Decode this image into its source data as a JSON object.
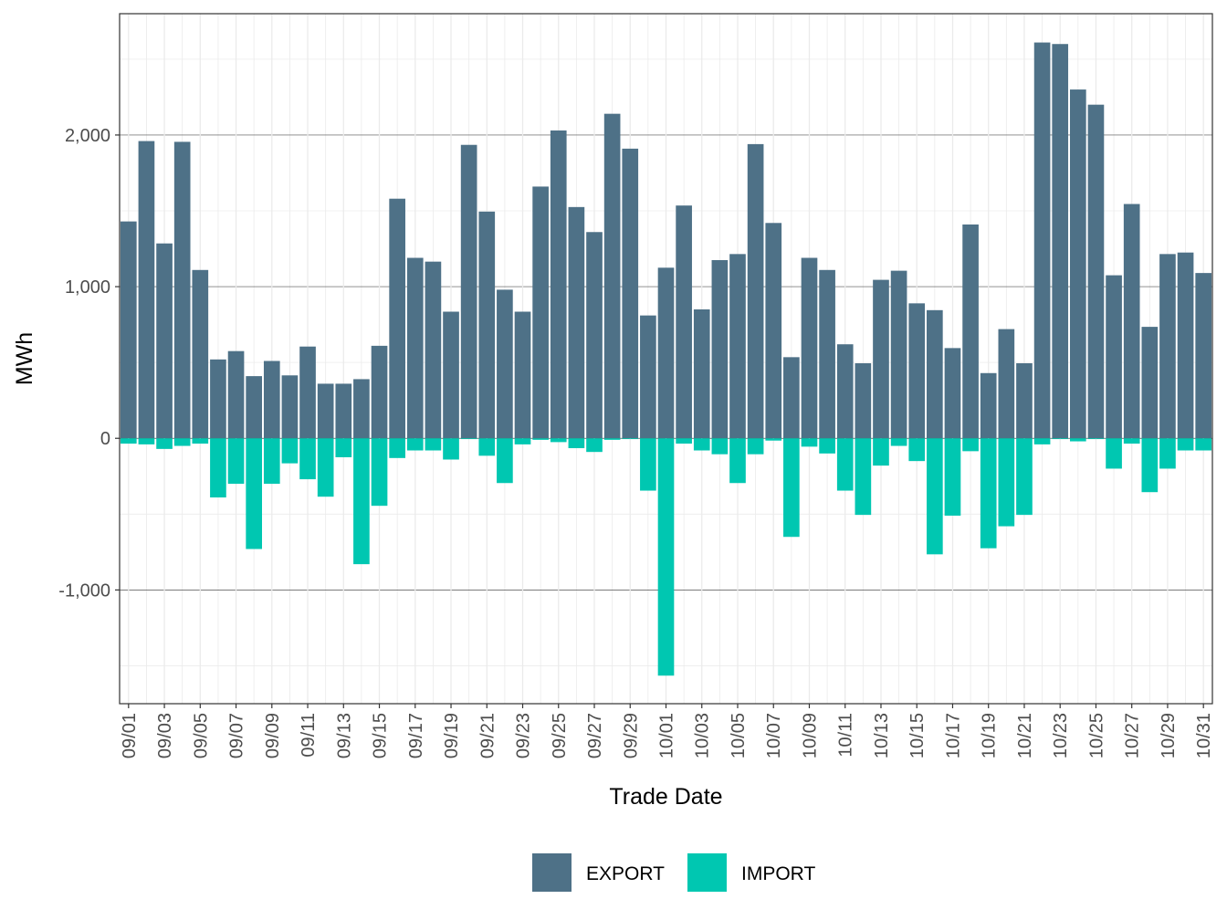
{
  "chart_data": {
    "type": "bar",
    "title": "",
    "xlabel": "Trade Date",
    "ylabel": "MWh",
    "ylim": [
      -1750,
      2800
    ],
    "yticks": [
      -1000,
      0,
      1000,
      2000
    ],
    "ytick_labels": [
      "-1,000",
      "0",
      "1,000",
      "2,000"
    ],
    "legend_position": "bottom",
    "categories": [
      "09/01",
      "09/02",
      "09/03",
      "09/04",
      "09/05",
      "09/06",
      "09/07",
      "09/08",
      "09/09",
      "09/10",
      "09/11",
      "09/12",
      "09/13",
      "09/14",
      "09/15",
      "09/16",
      "09/17",
      "09/18",
      "09/19",
      "09/20",
      "09/21",
      "09/22",
      "09/23",
      "09/24",
      "09/25",
      "09/26",
      "09/27",
      "09/28",
      "09/29",
      "09/30",
      "10/01",
      "10/02",
      "10/03",
      "10/04",
      "10/05",
      "10/06",
      "10/07",
      "10/08",
      "10/09",
      "10/10",
      "10/11",
      "10/12",
      "10/13",
      "10/14",
      "10/15",
      "10/16",
      "10/17",
      "10/18",
      "10/19",
      "10/20",
      "10/21",
      "10/22",
      "10/23",
      "10/24",
      "10/25",
      "10/26",
      "10/27",
      "10/28",
      "10/29",
      "10/30",
      "10/31"
    ],
    "xtick_labels": [
      "09/01",
      "09/03",
      "09/05",
      "09/07",
      "09/09",
      "09/11",
      "09/13",
      "09/15",
      "09/17",
      "09/19",
      "09/21",
      "09/23",
      "09/25",
      "09/27",
      "09/29",
      "10/01",
      "10/03",
      "10/05",
      "10/07",
      "10/09",
      "10/11",
      "10/13",
      "10/15",
      "10/17",
      "10/19",
      "10/21",
      "10/23",
      "10/25",
      "10/27",
      "10/29",
      "10/31"
    ],
    "series": [
      {
        "name": "EXPORT",
        "color": "#4e7187",
        "values": [
          1430,
          1960,
          1285,
          1955,
          1110,
          520,
          575,
          410,
          510,
          415,
          605,
          360,
          360,
          390,
          610,
          1580,
          1190,
          1165,
          835,
          1935,
          1495,
          980,
          835,
          1660,
          2030,
          1525,
          1360,
          2140,
          1910,
          810,
          1125,
          1535,
          850,
          1175,
          1215,
          1940,
          1420,
          535,
          1190,
          1110,
          620,
          495,
          1045,
          1105,
          890,
          845,
          595,
          1410,
          430,
          720,
          495,
          2610,
          2600,
          2300,
          2200,
          1075,
          1545,
          735,
          1215,
          1225,
          1090
        ]
      },
      {
        "name": "IMPORT",
        "color": "#00c7b1",
        "values": [
          -35,
          -40,
          -70,
          -50,
          -35,
          -390,
          -300,
          -730,
          -300,
          -165,
          -270,
          -385,
          -125,
          -830,
          -445,
          -130,
          -80,
          -80,
          -140,
          -5,
          -115,
          -295,
          -40,
          -10,
          -25,
          -65,
          -90,
          -10,
          -5,
          -345,
          -1565,
          -35,
          -80,
          -105,
          -295,
          -105,
          -15,
          -650,
          -55,
          -100,
          -345,
          -505,
          -180,
          -50,
          -150,
          -765,
          -510,
          -85,
          -725,
          -580,
          -505,
          -40,
          -5,
          -20,
          -5,
          -200,
          -35,
          -355,
          -200,
          -80,
          -80
        ]
      }
    ]
  }
}
